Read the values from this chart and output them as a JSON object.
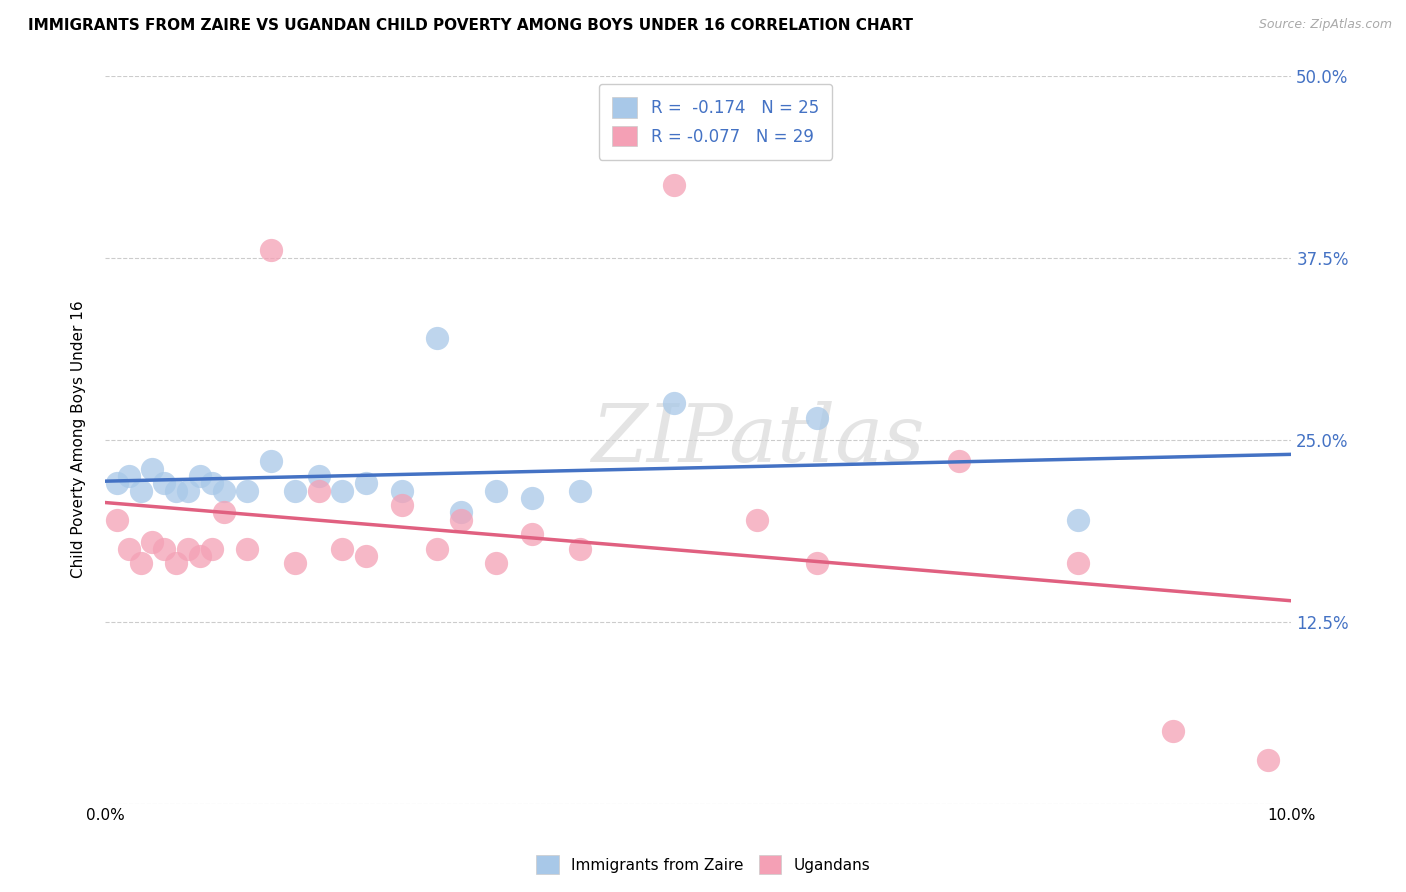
{
  "title": "IMMIGRANTS FROM ZAIRE VS UGANDAN CHILD POVERTY AMONG BOYS UNDER 16 CORRELATION CHART",
  "source": "Source: ZipAtlas.com",
  "ylabel": "Child Poverty Among Boys Under 16",
  "xlim": [
    0.0,
    0.1
  ],
  "ylim": [
    0.0,
    0.5
  ],
  "x_ticks": [
    0.0,
    0.02,
    0.04,
    0.06,
    0.08,
    0.1
  ],
  "x_tick_labels": [
    "0.0%",
    "",
    "",
    "",
    "",
    "10.0%"
  ],
  "y_ticks": [
    0.0,
    0.125,
    0.25,
    0.375,
    0.5
  ],
  "y_tick_labels_right": [
    "",
    "12.5%",
    "25.0%",
    "37.5%",
    "50.0%"
  ],
  "grid_color": "#cccccc",
  "background_color": "#ffffff",
  "watermark": "ZIPatlas",
  "blue_series": {
    "label": "Immigrants from Zaire",
    "R": -0.174,
    "N": 25,
    "color": "#a8c8e8",
    "line_color": "#4472c4",
    "x": [
      0.001,
      0.002,
      0.003,
      0.004,
      0.005,
      0.006,
      0.007,
      0.008,
      0.009,
      0.01,
      0.012,
      0.014,
      0.016,
      0.018,
      0.02,
      0.022,
      0.025,
      0.028,
      0.03,
      0.033,
      0.036,
      0.04,
      0.048,
      0.06,
      0.082
    ],
    "y": [
      0.22,
      0.225,
      0.215,
      0.23,
      0.22,
      0.215,
      0.215,
      0.225,
      0.22,
      0.215,
      0.215,
      0.235,
      0.215,
      0.225,
      0.215,
      0.22,
      0.215,
      0.32,
      0.2,
      0.215,
      0.21,
      0.215,
      0.275,
      0.265,
      0.195
    ]
  },
  "pink_series": {
    "label": "Ugandans",
    "R": -0.077,
    "N": 29,
    "color": "#f4a0b5",
    "line_color": "#e06080",
    "x": [
      0.001,
      0.002,
      0.003,
      0.004,
      0.005,
      0.006,
      0.007,
      0.008,
      0.009,
      0.01,
      0.012,
      0.014,
      0.016,
      0.018,
      0.02,
      0.022,
      0.025,
      0.028,
      0.03,
      0.033,
      0.036,
      0.04,
      0.048,
      0.055,
      0.06,
      0.072,
      0.082,
      0.09,
      0.098
    ],
    "y": [
      0.195,
      0.175,
      0.165,
      0.18,
      0.175,
      0.165,
      0.175,
      0.17,
      0.175,
      0.2,
      0.175,
      0.38,
      0.165,
      0.215,
      0.175,
      0.17,
      0.205,
      0.175,
      0.195,
      0.165,
      0.185,
      0.175,
      0.425,
      0.195,
      0.165,
      0.235,
      0.165,
      0.05,
      0.03
    ]
  }
}
